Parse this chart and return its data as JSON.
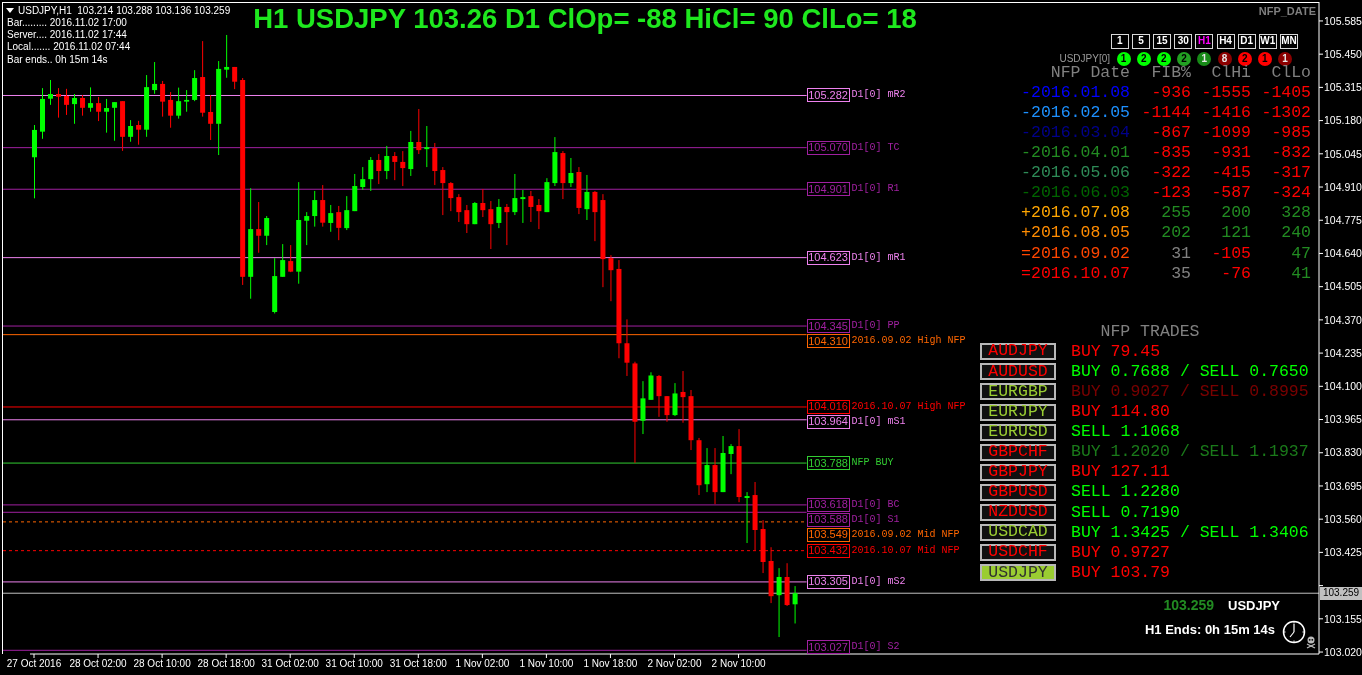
{
  "chart_data": {
    "type": "candlestick",
    "title": "H1 USDJPY 103.26 D1 ClOp= -88 HiCl= 90 ClLo= 18",
    "categories": [
      "27 Oct 2016",
      null,
      null,
      null,
      null,
      null,
      null,
      null,
      "28 Oct 02:00",
      null,
      null,
      null,
      null,
      null,
      null,
      null,
      "28 Oct 10:00",
      null,
      null,
      null,
      null,
      null,
      null,
      null,
      "28 Oct 18:00",
      null,
      null,
      null,
      null,
      null,
      null,
      null,
      "31 Oct 02:00",
      null,
      null,
      null,
      null,
      null,
      null,
      null,
      "31 Oct 10:00",
      null,
      null,
      null,
      null,
      null,
      null,
      null,
      "31 Oct 18:00",
      null,
      null,
      null,
      null,
      null,
      null,
      null,
      "1 Nov 02:00",
      null,
      null,
      null,
      null,
      null,
      null,
      null,
      "1 Nov 10:00",
      null,
      null,
      null,
      null,
      null,
      null,
      null,
      "1 Nov 18:00",
      null,
      null,
      null,
      null,
      null,
      null,
      null,
      "2 Nov 02:00",
      null,
      null,
      null,
      null,
      null,
      null,
      null,
      "2 Nov 10:00",
      null,
      null,
      null,
      null,
      null,
      null,
      null,
      null,
      null,
      null,
      null,
      null,
      null,
      null,
      null,
      null,
      null,
      null,
      null,
      null,
      null,
      null,
      null,
      null,
      null,
      null,
      null,
      null,
      null,
      null,
      null,
      null,
      null,
      null,
      null,
      null,
      null,
      null,
      null,
      null,
      null,
      null,
      null,
      null,
      null,
      null,
      null,
      null,
      null,
      null,
      null,
      null,
      null,
      null,
      null,
      null,
      null,
      null,
      null,
      null,
      null,
      null,
      null,
      null,
      null,
      null,
      null,
      null,
      null,
      null,
      null,
      null
    ],
    "ohlc": [
      [
        105.031,
        105.162,
        104.864,
        105.142
      ],
      [
        105.135,
        105.312,
        105.106,
        105.268
      ],
      [
        105.269,
        105.345,
        105.244,
        105.288
      ],
      [
        105.288,
        105.312,
        105.192,
        105.277
      ],
      [
        105.28,
        105.309,
        105.203,
        105.244
      ],
      [
        105.247,
        105.288,
        105.167,
        105.272
      ],
      [
        105.272,
        105.284,
        105.2,
        105.232
      ],
      [
        105.232,
        105.315,
        105.216,
        105.251
      ],
      [
        105.251,
        105.276,
        105.178,
        105.216
      ],
      [
        105.216,
        105.268,
        105.131,
        105.231
      ],
      [
        105.232,
        105.255,
        105.098,
        105.255
      ],
      [
        105.259,
        105.259,
        105.057,
        105.114
      ],
      [
        105.114,
        105.182,
        105.094,
        105.158
      ],
      [
        105.162,
        105.179,
        105.082,
        105.143
      ],
      [
        105.143,
        105.365,
        105.114,
        105.316
      ],
      [
        105.304,
        105.418,
        105.289,
        105.329
      ],
      [
        105.329,
        105.341,
        105.196,
        105.257
      ],
      [
        105.264,
        105.296,
        105.151,
        105.2
      ],
      [
        105.2,
        105.314,
        105.188,
        105.259
      ],
      [
        105.257,
        105.304,
        105.216,
        105.264
      ],
      [
        105.264,
        105.385,
        105.259,
        105.353
      ],
      [
        105.357,
        105.503,
        105.196,
        105.212
      ],
      [
        105.215,
        105.284,
        105.101,
        105.167
      ],
      [
        105.167,
        105.422,
        105.04,
        105.39
      ],
      [
        105.387,
        105.528,
        105.354,
        105.398
      ],
      [
        105.398,
        105.398,
        105.308,
        105.338
      ],
      [
        105.345,
        105.353,
        104.512,
        104.545
      ],
      [
        104.545,
        104.905,
        104.456,
        104.739
      ],
      [
        104.739,
        104.849,
        104.643,
        104.712
      ],
      [
        104.712,
        104.792,
        104.674,
        104.784
      ],
      [
        104.402,
        104.621,
        104.396,
        104.548
      ],
      [
        104.545,
        104.678,
        104.545,
        104.613
      ],
      [
        104.609,
        104.674,
        104.564,
        104.566
      ],
      [
        104.566,
        104.93,
        104.517,
        104.776
      ],
      [
        104.773,
        104.808,
        104.674,
        104.792
      ],
      [
        104.792,
        104.894,
        104.749,
        104.857
      ],
      [
        104.857,
        104.918,
        104.749,
        104.765
      ],
      [
        104.764,
        104.837,
        104.728,
        104.804
      ],
      [
        104.808,
        104.833,
        104.694,
        104.744
      ],
      [
        104.743,
        104.873,
        104.735,
        104.816
      ],
      [
        104.812,
        104.963,
        104.812,
        104.914
      ],
      [
        104.91,
        104.991,
        104.898,
        104.942
      ],
      [
        104.942,
        105.032,
        104.894,
        105.02
      ],
      [
        105.02,
        105.044,
        104.922,
        104.975
      ],
      [
        104.975,
        105.077,
        104.942,
        105.036
      ],
      [
        105.036,
        105.052,
        104.938,
        105.012
      ],
      [
        105.012,
        105.056,
        104.914,
        104.987
      ],
      [
        104.983,
        105.138,
        104.955,
        105.093
      ],
      [
        105.093,
        105.227,
        105.044,
        105.06
      ],
      [
        105.064,
        105.158,
        104.991,
        105.072
      ],
      [
        105.068,
        105.089,
        104.918,
        104.975
      ],
      [
        104.979,
        104.991,
        104.796,
        104.926
      ],
      [
        104.926,
        104.93,
        104.812,
        104.865
      ],
      [
        104.869,
        104.881,
        104.768,
        104.808
      ],
      [
        104.816,
        104.837,
        104.723,
        104.759
      ],
      [
        104.759,
        104.849,
        104.759,
        104.845
      ],
      [
        104.845,
        104.902,
        104.788,
        104.816
      ],
      [
        104.82,
        104.853,
        104.658,
        104.759
      ],
      [
        104.764,
        104.861,
        104.743,
        104.829
      ],
      [
        104.829,
        104.841,
        104.674,
        104.808
      ],
      [
        104.808,
        104.963,
        104.796,
        104.865
      ],
      [
        104.861,
        104.898,
        104.764,
        104.869
      ],
      [
        104.873,
        104.894,
        104.768,
        104.829
      ],
      [
        104.837,
        104.861,
        104.739,
        104.812
      ],
      [
        104.808,
        104.946,
        104.808,
        104.93
      ],
      [
        104.926,
        105.113,
        104.914,
        105.052
      ],
      [
        105.048,
        105.056,
        104.861,
        104.926
      ],
      [
        104.926,
        105.028,
        104.91,
        104.967
      ],
      [
        104.971,
        104.991,
        104.8,
        104.825
      ],
      [
        104.82,
        104.959,
        104.776,
        104.89
      ],
      [
        104.89,
        104.894,
        104.69,
        104.808
      ],
      [
        104.857,
        104.881,
        104.503,
        104.617
      ],
      [
        104.621,
        104.633,
        104.446,
        104.572
      ],
      [
        104.577,
        104.613,
        104.214,
        104.275
      ],
      [
        104.275,
        104.372,
        104.142,
        104.196
      ],
      [
        104.193,
        104.2,
        103.789,
        103.956
      ],
      [
        103.96,
        104.121,
        103.906,
        104.051
      ],
      [
        104.045,
        104.157,
        104.045,
        104.144
      ],
      [
        104.142,
        104.146,
        103.976,
        104.06
      ],
      [
        104.06,
        104.06,
        103.956,
        103.983
      ],
      [
        103.983,
        104.113,
        103.979,
        104.071
      ],
      [
        104.077,
        104.162,
        103.952,
        104.056
      ],
      [
        104.06,
        104.085,
        103.841,
        103.881
      ],
      [
        103.881,
        103.89,
        103.658,
        103.698
      ],
      [
        103.702,
        103.849,
        103.67,
        103.78
      ],
      [
        103.78,
        103.849,
        103.621,
        103.67
      ],
      [
        103.67,
        103.898,
        103.67,
        103.829
      ],
      [
        103.825,
        103.865,
        103.743,
        103.857
      ],
      [
        103.857,
        103.926,
        103.629,
        103.65
      ],
      [
        103.646,
        103.67,
        103.463,
        103.654
      ],
      [
        103.658,
        103.711,
        103.434,
        103.516
      ],
      [
        103.52,
        103.556,
        103.341,
        103.386
      ],
      [
        103.39,
        103.446,
        103.219,
        103.247
      ],
      [
        103.251,
        103.361,
        103.081,
        103.325
      ],
      [
        103.325,
        103.381,
        103.207,
        103.211
      ],
      [
        103.214,
        103.288,
        103.136,
        103.259
      ],
      null,
      null,
      null,
      null,
      null,
      null,
      null,
      null,
      null,
      null,
      null,
      null,
      null,
      null,
      null,
      null,
      null,
      null,
      null,
      null,
      null,
      null,
      null,
      null,
      null,
      null,
      null,
      null,
      null,
      null,
      null,
      null,
      null,
      null,
      null,
      null,
      null,
      null,
      null,
      null,
      null,
      null,
      null,
      null,
      null,
      null,
      null,
      null,
      null,
      null,
      null,
      null,
      null,
      null,
      null,
      null,
      null,
      null,
      null,
      null,
      null,
      null,
      null,
      null,
      null
    ],
    "colors": [
      "#00ff00",
      "#00ff00",
      "#00ff00",
      "#ff0000",
      "#ff0000",
      "#00ff00",
      "#ff0000",
      "#00ff00",
      "#ff0000",
      "#00ff00",
      "#00ff00",
      "#ff0000",
      "#00ff00",
      "#ff0000",
      "#00ff00",
      "#00ff00",
      "#ff0000",
      "#ff0000",
      "#00ff00",
      "#00ff00",
      "#00ff00",
      "#ff0000",
      "#ff0000",
      "#00ff00",
      "#00ff00",
      "#ff0000",
      "#ff0000",
      "#00ff00",
      "#ff0000",
      "#00ff00",
      "#00ff00",
      "#00ff00",
      "#ff0000",
      "#00ff00",
      "#00ff00",
      "#00ff00",
      "#ff0000",
      "#00ff00",
      "#ff0000",
      "#00ff00",
      "#00ff00",
      "#00ff00",
      "#00ff00",
      "#ff0000",
      "#00ff00",
      "#ff0000",
      "#ff0000",
      "#00ff00",
      "#ff0000",
      "#00ff00",
      "#ff0000",
      "#ff0000",
      "#ff0000",
      "#ff0000",
      "#ff0000",
      "#00ff00",
      "#ff0000",
      "#ff0000",
      "#00ff00",
      "#ff0000",
      "#00ff00",
      "#00ff00",
      "#ff0000",
      "#ff0000",
      "#00ff00",
      "#00ff00",
      "#ff0000",
      "#00ff00",
      "#ff0000",
      "#00ff00",
      "#ff0000",
      "#ff0000",
      "#ff0000",
      "#ff0000",
      "#ff0000",
      "#ff0000",
      "#00ff00",
      "#00ff00",
      "#ff0000",
      "#ff0000",
      "#00ff00",
      "#ff0000",
      "#ff0000",
      "#ff0000",
      "#00ff00",
      "#ff0000",
      "#00ff00",
      "#00ff00",
      "#ff0000",
      "#00ff00",
      "#ff0000",
      "#ff0000",
      "#ff0000",
      "#00ff00",
      "#ff0000",
      "#00ff00",
      null,
      null,
      null,
      null,
      null,
      null,
      null,
      null,
      null,
      null,
      null,
      null,
      null,
      null,
      null,
      null,
      null,
      null,
      null,
      null,
      null,
      null,
      null,
      null,
      null,
      null,
      null,
      null,
      null,
      null,
      null,
      null,
      null,
      null,
      null,
      null,
      null,
      null,
      null,
      null,
      null,
      null,
      null,
      null,
      null,
      null,
      null,
      null,
      null,
      null,
      null,
      null,
      null,
      null,
      null,
      null,
      null,
      null,
      null,
      null,
      null,
      null,
      null,
      null,
      null
    ],
    "ylim": [
      103.012,
      105.662
    ],
    "yticks": [
      {
        "value": 103.02,
        "label": "103.020"
      },
      {
        "value": 103.155,
        "label": "103.155"
      },
      {
        "value": 103.29,
        "label": null
      },
      {
        "value": 103.425,
        "label": "103.425"
      },
      {
        "value": 103.56,
        "label": "103.560"
      },
      {
        "value": 103.695,
        "label": "103.695"
      },
      {
        "value": 103.83,
        "label": "103.830"
      },
      {
        "value": 103.965,
        "label": "103.965"
      },
      {
        "value": 104.1,
        "label": "104.100"
      },
      {
        "value": 104.235,
        "label": "104.235"
      },
      {
        "value": 104.37,
        "label": "104.370"
      },
      {
        "value": 104.505,
        "label": "104.505"
      },
      {
        "value": 104.64,
        "label": "104.640"
      },
      {
        "value": 104.775,
        "label": "104.775"
      },
      {
        "value": 104.91,
        "label": "104.910"
      },
      {
        "value": 105.045,
        "label": "105.045"
      },
      {
        "value": 105.18,
        "label": "105.180"
      },
      {
        "value": 105.315,
        "label": "105.315"
      },
      {
        "value": 105.45,
        "label": "105.450"
      },
      {
        "value": 105.585,
        "label": "105.585"
      }
    ],
    "ref_lines": [
      {
        "axis": "y",
        "value": 105.282,
        "label": "D1[0] mR2",
        "color": "#ee82ee",
        "line_style": "solid"
      },
      {
        "axis": "y",
        "value": 105.07,
        "label": "D1[0] TC",
        "color": "#a020a0",
        "line_style": "solid"
      },
      {
        "axis": "y",
        "value": 104.901,
        "label": "D1[0] R1",
        "color": "#a020a0",
        "line_style": "solid"
      },
      {
        "axis": "y",
        "value": 104.623,
        "label": "D1[0] mR1",
        "color": "#ee82ee",
        "line_style": "solid"
      },
      {
        "axis": "y",
        "value": 104.345,
        "label": "D1[0] PP",
        "color": "#a020a0",
        "line_style": "solid"
      },
      {
        "axis": "y",
        "value": 104.31,
        "label": "2016.09.02 High NFP",
        "color": "#ff6600",
        "line_style": "solid"
      },
      {
        "axis": "y",
        "value": 104.016,
        "label": "2016.10.07 High NFP",
        "color": "#ff0000",
        "line_style": "solid"
      },
      {
        "axis": "y",
        "value": 103.964,
        "label": "D1[0] mS1",
        "color": "#ee82ee",
        "line_style": "solid"
      },
      {
        "axis": "y",
        "value": 103.788,
        "label": "NFP BUY",
        "color": "#32cd32",
        "line_style": "solid"
      },
      {
        "axis": "y",
        "value": 103.618,
        "label": "D1[0] BC",
        "color": "#a020a0",
        "line_style": "solid"
      },
      {
        "axis": "y",
        "value": 103.588,
        "label": "D1[0] S1",
        "color": "#a020a0",
        "line_style": "solid"
      },
      {
        "axis": "y",
        "value": 103.549,
        "label": "2016.09.02 Mid NFP",
        "color": "#ff6600",
        "line_style": "dashed"
      },
      {
        "axis": "y",
        "value": 103.432,
        "label": "2016.10.07 Mid NFP",
        "color": "#ff0000",
        "line_style": "dashed"
      },
      {
        "axis": "y",
        "value": 103.305,
        "label": "D1[0] mS2",
        "color": "#ee82ee",
        "line_style": "solid"
      },
      {
        "axis": "y",
        "value": 103.259,
        "color": "#c0c0c0",
        "line_style": "solid"
      },
      {
        "axis": "y",
        "value": 103.027,
        "label": "D1[0] S2",
        "color": "#a020a0",
        "line_style": "solid"
      }
    ],
    "annotations": [
      "USDJPY,H1  103.214 103.288 103.136 103.259",
      "Bar......... 2016.11.02 17:00",
      "Server.... 2016.11.02 17:44",
      "Local....... 2016.11.02 07:44",
      "Bar ends.. 0h 15m 14s",
      "NFP_DATE",
      "1 5 15 30 H1 H4 D1 W1 MN",
      "USDJPY[0]",
      "1",
      "2",
      "2",
      "2",
      "1",
      "8",
      "2",
      "1",
      "1",
      "NFP Date",
      "FIB%",
      "ClHi",
      "ClLo",
      "-2016.01.08",
      "-936",
      "-1555",
      "-1405",
      "-2016.02.05",
      "-1144",
      "-1416",
      "-1302",
      "-2016.03.04",
      "-867",
      "-1099",
      "-985",
      "-2016.04.01",
      "-835",
      "-931",
      "-832",
      "-2016.05.06",
      "-322",
      "-415",
      "-317",
      "-2016.06.03",
      "-123",
      "-587",
      "-324",
      "+2016.07.08",
      "255",
      "200",
      "328",
      "+2016.08.05",
      "202",
      "121",
      "240",
      "=2016.09.02",
      "31",
      "-105",
      "47",
      "=2016.10.07",
      "35",
      "-76",
      "41",
      "NFP TRADES",
      "AUDJPY",
      "BUY 79.45",
      "AUDUSD",
      "BUY 0.7688 / SELL 0.7650",
      "EURGBP",
      "BUY 0.9027 / SELL 0.8995",
      "EURJPY",
      "BUY 114.80",
      "EURUSD",
      "SELL 1.1068",
      "GBPCHF",
      "BUY 1.2020 / SELL 1.1937",
      "GBPJPY",
      "BUY 127.11",
      "GBPUSD",
      "SELL 1.2280",
      "NZDUSD",
      "SELL 0.7190",
      "USDCAD",
      "BUY 1.3425 / SELL 1.3406",
      "USDCHF",
      "BUY 0.9727",
      "USDJPY",
      "BUY 103.79",
      "103.259",
      "USDJPY",
      "H1 Ends: 0h 15m 14s",
      "105.282",
      "105.070",
      "104.901",
      "104.623",
      "104.345",
      "104.310",
      "104.016",
      "103.964",
      "103.788",
      "103.618",
      "103.588",
      "103.549",
      "103.432",
      "103.305",
      "103.259",
      "103.027"
    ]
  }
}
